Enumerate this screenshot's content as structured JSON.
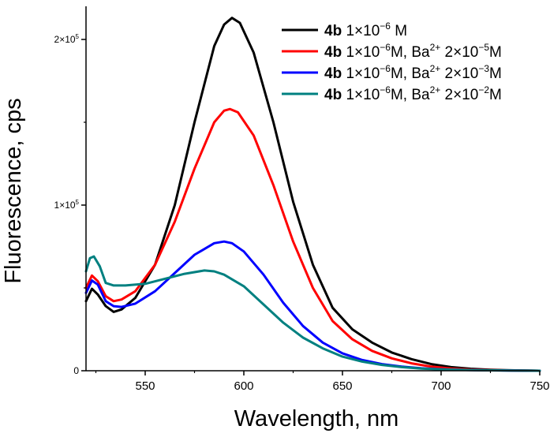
{
  "chart_data": {
    "type": "line",
    "title": "",
    "xlabel": "Wavelength, nm",
    "ylabel": "Fluorescence, cps",
    "xlim": [
      520,
      750
    ],
    "ylim": [
      0,
      220000
    ],
    "x_ticks": [
      550,
      600,
      650,
      700,
      750
    ],
    "x_tick_labels": [
      "550",
      "600",
      "650",
      "700",
      "750"
    ],
    "y_ticks": [
      {
        "value": 0,
        "base": "0",
        "exp": ""
      },
      {
        "value": 100000,
        "base": "1×10",
        "exp": "5"
      },
      {
        "value": 200000,
        "base": "2×10",
        "exp": "5"
      }
    ],
    "grid": false,
    "legend_position": "top-right",
    "series": [
      {
        "name": "4b 1×10⁻⁶ M",
        "legend": {
          "bold": "4b",
          "parts": [
            {
              "t": " 1×10"
            },
            {
              "t": "−6",
              "sup": true
            },
            {
              "t": " M"
            }
          ]
        },
        "color": "#000000",
        "x": [
          520,
          523,
          526,
          530,
          534,
          538,
          545,
          555,
          565,
          575,
          585,
          590,
          594,
          598,
          605,
          615,
          625,
          635,
          645,
          655,
          665,
          675,
          685,
          695,
          705,
          715,
          725,
          735,
          750
        ],
        "y": [
          42000,
          49500,
          46000,
          39000,
          35500,
          37000,
          44000,
          64000,
          100000,
          150000,
          196000,
          209000,
          213000,
          210000,
          192000,
          150000,
          102000,
          64000,
          38000,
          25000,
          17000,
          11000,
          7000,
          4000,
          2200,
          1200,
          600,
          300,
          0
        ]
      },
      {
        "name": "4b 1×10⁻⁶M, Ba²⁺ 2×10⁻⁵M",
        "legend": {
          "bold": "4b",
          "parts": [
            {
              "t": " 1×10"
            },
            {
              "t": "−6",
              "sup": true
            },
            {
              "t": "M, Ba"
            },
            {
              "t": "2+",
              "sup": true
            },
            {
              "t": " 2×10"
            },
            {
              "t": "−5",
              "sup": true
            },
            {
              "t": "M"
            }
          ]
        },
        "color": "#ff0000",
        "x": [
          520,
          523,
          526,
          530,
          534,
          538,
          545,
          555,
          565,
          575,
          585,
          590,
          593,
          597,
          605,
          615,
          625,
          635,
          645,
          655,
          665,
          675,
          685,
          695,
          705,
          715,
          725,
          735,
          750
        ],
        "y": [
          50000,
          57500,
          54000,
          45000,
          42000,
          43000,
          48000,
          64000,
          90000,
          122000,
          150000,
          157000,
          158000,
          156000,
          142000,
          112000,
          78000,
          50000,
          30000,
          19000,
          12000,
          7500,
          4500,
          2500,
          1300,
          700,
          400,
          200,
          0
        ]
      },
      {
        "name": "4b 1×10⁻⁶M, Ba²⁺ 2×10⁻³M",
        "legend": {
          "bold": "4b",
          "parts": [
            {
              "t": " 1×10"
            },
            {
              "t": "−6",
              "sup": true
            },
            {
              "t": "M, Ba"
            },
            {
              "t": "2+",
              "sup": true
            },
            {
              "t": " 2×10"
            },
            {
              "t": "−3",
              "sup": true
            },
            {
              "t": "M"
            }
          ]
        },
        "color": "#0000ff",
        "x": [
          520,
          523,
          526,
          530,
          534,
          538,
          545,
          555,
          565,
          575,
          585,
          590,
          594,
          600,
          610,
          620,
          630,
          640,
          650,
          660,
          670,
          680,
          690,
          700,
          710,
          720,
          735,
          750
        ],
        "y": [
          47000,
          54500,
          52000,
          42000,
          39000,
          38500,
          40500,
          48000,
          59000,
          70000,
          77000,
          78000,
          77000,
          72000,
          58000,
          41000,
          27000,
          17000,
          10500,
          6500,
          4000,
          2500,
          1500,
          900,
          500,
          300,
          150,
          0
        ]
      },
      {
        "name": "4b 1×10⁻⁶M, Ba²⁺ 2×10⁻²M",
        "legend": {
          "bold": "4b",
          "parts": [
            {
              "t": " 1×10"
            },
            {
              "t": "−6",
              "sup": true
            },
            {
              "t": "M, Ba"
            },
            {
              "t": "2+",
              "sup": true
            },
            {
              "t": " 2×10"
            },
            {
              "t": "−2",
              "sup": true
            },
            {
              "t": "M"
            }
          ]
        },
        "color": "#008080",
        "x": [
          520,
          522,
          524,
          527,
          530,
          534,
          540,
          550,
          560,
          570,
          580,
          585,
          590,
          600,
          610,
          620,
          630,
          640,
          650,
          660,
          670,
          680,
          690,
          700,
          710,
          720,
          735,
          750
        ],
        "y": [
          60000,
          68000,
          69000,
          63000,
          53000,
          51500,
          51500,
          52500,
          55500,
          58500,
          60500,
          60000,
          58000,
          51000,
          40000,
          29000,
          20000,
          13500,
          8500,
          5500,
          3500,
          2200,
          1300,
          800,
          500,
          300,
          150,
          0
        ]
      }
    ]
  }
}
